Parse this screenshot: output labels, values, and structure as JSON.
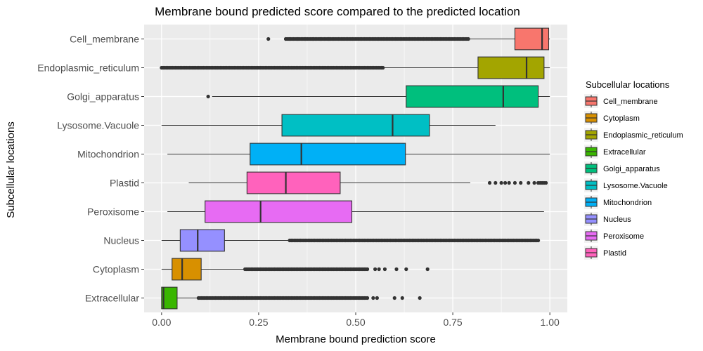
{
  "chart_data": {
    "type": "boxplot",
    "orientation": "horizontal",
    "title": "Membrane bound predicted score compared to the predicted location",
    "xlabel": "Membrane bound prediction score",
    "ylabel": "Subcellular locations",
    "xlim": [
      -0.045,
      1.045
    ],
    "xticks": [
      0.0,
      0.25,
      0.5,
      0.75,
      1.0
    ],
    "xtick_labels": [
      "0.00",
      "0.25",
      "0.50",
      "0.75",
      "1.00"
    ],
    "grid": true,
    "legend": {
      "title": "Subcellular locations",
      "placement": "right",
      "entries": [
        {
          "name": "Cell_membrane",
          "color": "#F8766D"
        },
        {
          "name": "Cytoplasm",
          "color": "#D89000"
        },
        {
          "name": "Endoplasmic_reticulum",
          "color": "#A3A500"
        },
        {
          "name": "Extracellular",
          "color": "#39B600"
        },
        {
          "name": "Golgi_apparatus",
          "color": "#00BF7D"
        },
        {
          "name": "Lysosome.Vacuole",
          "color": "#00BFC4"
        },
        {
          "name": "Mitochondrion",
          "color": "#00B0F6"
        },
        {
          "name": "Nucleus",
          "color": "#9590FF"
        },
        {
          "name": "Peroxisome",
          "color": "#E76BF3"
        },
        {
          "name": "Plastid",
          "color": "#FF62BC"
        }
      ]
    },
    "categories": [
      "Cell_membrane",
      "Endoplasmic_reticulum",
      "Golgi_apparatus",
      "Lysosome.Vacuole",
      "Mitochondrion",
      "Plastid",
      "Peroxisome",
      "Nucleus",
      "Cytoplasm",
      "Extracellular"
    ],
    "boxes": [
      {
        "name": "Cell_membrane",
        "color": "#F8766D",
        "whisker_low": 0.79,
        "q1": 0.91,
        "median": 0.98,
        "q3": 0.997,
        "whisker_high": 1.0,
        "outliers_range": [
          0.32,
          0.79
        ],
        "outliers": [
          0.275,
          0.32,
          0.33,
          0.35,
          0.37,
          0.39,
          0.41,
          0.43
        ]
      },
      {
        "name": "Endoplasmic_reticulum",
        "color": "#A3A500",
        "whisker_low": 0.57,
        "q1": 0.815,
        "median": 0.94,
        "q3": 0.985,
        "whisker_high": 1.0,
        "outliers_range": [
          0.0,
          0.57
        ],
        "outliers": []
      },
      {
        "name": "Golgi_apparatus",
        "color": "#00BF7D",
        "whisker_low": 0.13,
        "q1": 0.63,
        "median": 0.88,
        "q3": 0.97,
        "whisker_high": 1.0,
        "outliers_range": null,
        "outliers": [
          0.12
        ]
      },
      {
        "name": "Lysosome.Vacuole",
        "color": "#00BFC4",
        "whisker_low": 0.0,
        "q1": 0.31,
        "median": 0.595,
        "q3": 0.69,
        "whisker_high": 0.86,
        "outliers_range": null,
        "outliers": []
      },
      {
        "name": "Mitochondrion",
        "color": "#00B0F6",
        "whisker_low": 0.015,
        "q1": 0.228,
        "median": 0.36,
        "q3": 0.628,
        "whisker_high": 1.0,
        "outliers_range": null,
        "outliers": []
      },
      {
        "name": "Plastid",
        "color": "#FF62BC",
        "whisker_low": 0.07,
        "q1": 0.22,
        "median": 0.32,
        "q3": 0.46,
        "whisker_high": 0.795,
        "outliers_range": null,
        "outliers": [
          0.845,
          0.86,
          0.875,
          0.885,
          0.895,
          0.91,
          0.925,
          0.945,
          0.96,
          0.97,
          0.975,
          0.98,
          0.985,
          0.99
        ]
      },
      {
        "name": "Peroxisome",
        "color": "#E76BF3",
        "whisker_low": 0.015,
        "q1": 0.112,
        "median": 0.255,
        "q3": 0.49,
        "whisker_high": 0.985,
        "outliers_range": null,
        "outliers": []
      },
      {
        "name": "Nucleus",
        "color": "#9590FF",
        "whisker_low": 0.0,
        "q1": 0.048,
        "median": 0.093,
        "q3": 0.162,
        "whisker_high": 0.33,
        "outliers_range": [
          0.33,
          0.97
        ],
        "outliers": []
      },
      {
        "name": "Cytoplasm",
        "color": "#D89000",
        "whisker_low": 0.0,
        "q1": 0.027,
        "median": 0.053,
        "q3": 0.102,
        "whisker_high": 0.215,
        "outliers_range": [
          0.215,
          0.53
        ],
        "outliers": [
          0.55,
          0.56,
          0.575,
          0.605,
          0.63,
          0.685
        ]
      },
      {
        "name": "Extracellular",
        "color": "#39B600",
        "whisker_low": 0.0,
        "q1": 0.0,
        "median": 0.005,
        "q3": 0.04,
        "whisker_high": 0.095,
        "outliers_range": [
          0.095,
          0.53
        ],
        "outliers": [
          0.545,
          0.555,
          0.6,
          0.62,
          0.665
        ]
      }
    ]
  }
}
